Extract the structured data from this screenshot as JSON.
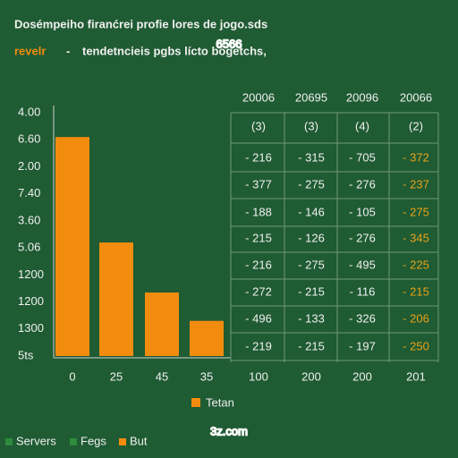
{
  "header": {
    "line1": "Dosémpeiho firanćrei profie lores de jogo.sds",
    "line2_a": "revelr",
    "line2_b": "-",
    "line2_c": "tendetncieis pgbs lícto bogetchs,"
  },
  "watermarks": [
    "6566",
    "3z.com"
  ],
  "chart_data": {
    "type": "bar",
    "color": "#f28c0f",
    "categories": [
      "0",
      "25",
      "45",
      "35"
    ],
    "values": [
      8.1,
      4.2,
      2.35,
      1.3
    ],
    "ylim": [
      0,
      9
    ],
    "yticks": [
      {
        "value": 9,
        "label": "4.00"
      },
      {
        "value": 8,
        "label": "6.60"
      },
      {
        "value": 7,
        "label": "2.00"
      },
      {
        "value": 6,
        "label": "7.40"
      },
      {
        "value": 5,
        "label": "3.60"
      },
      {
        "value": 4,
        "label": "5.06"
      },
      {
        "value": 3,
        "label": "1200"
      },
      {
        "value": 2,
        "label": "1200"
      },
      {
        "value": 1,
        "label": "1300"
      },
      {
        "value": 0,
        "label": "5ts"
      }
    ],
    "legend": "Tetan"
  },
  "table": {
    "header": [
      "20006",
      "20695",
      "20096",
      "20066"
    ],
    "subheader": [
      "(3)",
      "(3)",
      "(4)",
      "(2)"
    ],
    "rows": [
      [
        "- 216",
        "- 315",
        "- 705",
        "- 372"
      ],
      [
        "- 377",
        "- 275",
        "- 276",
        "- 237"
      ],
      [
        "- 188",
        "- 146",
        "- 105",
        "- 275"
      ],
      [
        "- 215",
        "- 126",
        "- 276",
        "- 345"
      ],
      [
        "- 216",
        "- 275",
        "- 495",
        "- 225"
      ],
      [
        "- 272",
        "- 215",
        "- 116",
        "- 215"
      ],
      [
        "- 496",
        "- 133",
        "- 326",
        "- 206"
      ],
      [
        "- 219",
        "- 215",
        "- 197",
        "- 250"
      ]
    ],
    "footer": [
      "100",
      "200",
      "200",
      "201"
    ]
  },
  "bottom_legend": [
    {
      "name": "Servers",
      "color": "#2e8b3d"
    },
    {
      "name": "Fegs",
      "color": "#2e8b3d"
    },
    {
      "name": "But",
      "color": "#f28c0f"
    }
  ]
}
